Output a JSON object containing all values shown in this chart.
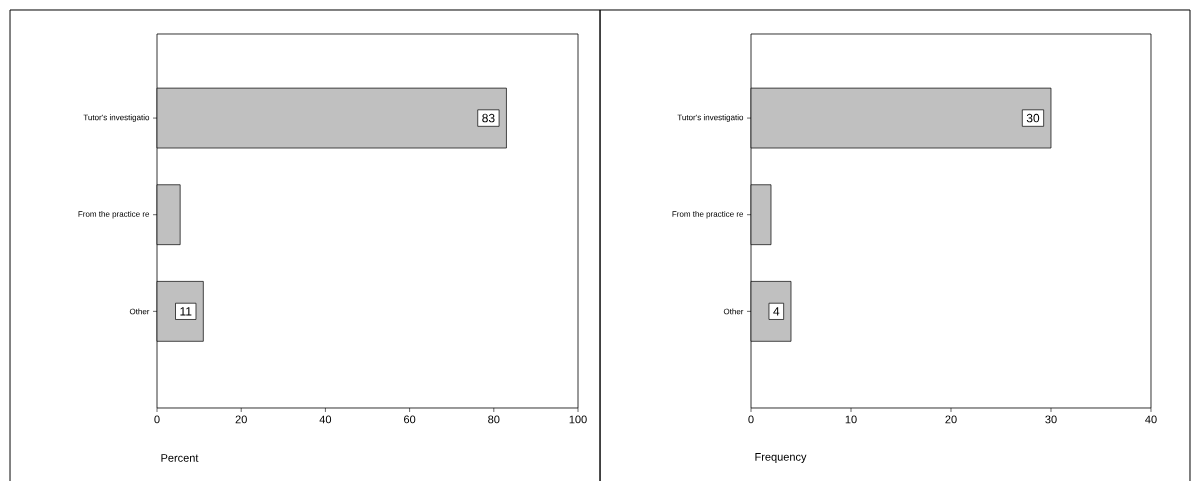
{
  "chart_data": [
    {
      "type": "bar",
      "orientation": "horizontal",
      "categories": [
        "Tutor's investigatio",
        "From the practice re",
        "Other"
      ],
      "values": [
        83,
        5.5,
        11
      ],
      "value_labels": [
        "83",
        null,
        "11"
      ],
      "color": "#c0c0c0",
      "xlim": [
        0,
        100
      ],
      "xticks": [
        0,
        20,
        40,
        60,
        80,
        100
      ],
      "xlabel": "Percent"
    },
    {
      "type": "bar",
      "orientation": "horizontal",
      "categories": [
        "Tutor's investigatio",
        "From the practice re",
        "Other"
      ],
      "values": [
        30,
        2,
        4
      ],
      "value_labels": [
        "30",
        null,
        "4"
      ],
      "color": "#c0c0c0",
      "xlim": [
        0,
        40
      ],
      "xticks": [
        0,
        10,
        20,
        30,
        40
      ],
      "xlabel": "Frequency"
    }
  ]
}
